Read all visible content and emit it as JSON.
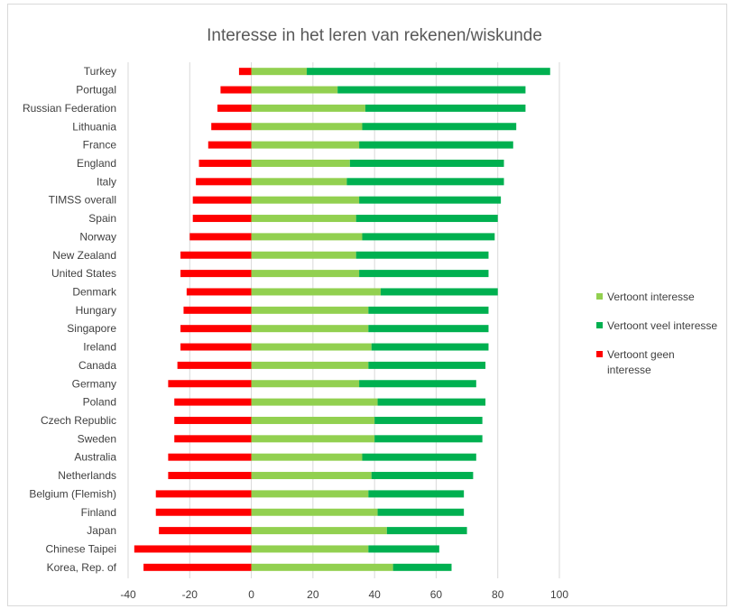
{
  "chart_data": {
    "type": "bar",
    "orientation": "horizontal",
    "stacked": true,
    "title": "Interesse in het leren van rekenen/wiskunde",
    "categories": [
      "Turkey",
      "Portugal",
      "Russian Federation",
      "Lithuania",
      "France",
      "England",
      "Italy",
      "TIMSS overall",
      "Spain",
      "Norway",
      "New Zealand",
      "United States",
      "Denmark",
      "Hungary",
      "Singapore",
      "Ireland",
      "Canada",
      "Germany",
      "Poland",
      "Czech Republic",
      "Sweden",
      "Australia",
      "Netherlands",
      "Belgium (Flemish)",
      "Finland",
      "Japan",
      "Chinese Taipei",
      "Korea, Rep. of"
    ],
    "series": [
      {
        "name": "Vertoont interesse",
        "color": "#92d050",
        "values": [
          18,
          28,
          37,
          36,
          35,
          32,
          31,
          35,
          34,
          36,
          34,
          35,
          42,
          38,
          38,
          39,
          38,
          35,
          41,
          40,
          40,
          36,
          39,
          38,
          41,
          44,
          38,
          46
        ]
      },
      {
        "name": "Vertoont veel interesse",
        "color": "#00b050",
        "values": [
          79,
          61,
          52,
          50,
          50,
          50,
          51,
          46,
          46,
          43,
          43,
          42,
          38,
          39,
          39,
          38,
          38,
          38,
          35,
          35,
          35,
          37,
          33,
          31,
          28,
          26,
          23,
          19
        ]
      },
      {
        "name": "Vertoont geen interesse",
        "color": "#ff0000",
        "values": [
          -4,
          -10,
          -11,
          -13,
          -14,
          -17,
          -18,
          -19,
          -19,
          -20,
          -23,
          -23,
          -21,
          -22,
          -23,
          -23,
          -24,
          -27,
          -25,
          -25,
          -25,
          -27,
          -27,
          -31,
          -31,
          -30,
          -38,
          -35
        ]
      }
    ],
    "xlim": [
      -40,
      100
    ],
    "xticks": [
      -40,
      -20,
      0,
      20,
      40,
      60,
      80,
      100
    ],
    "grid": true,
    "legend": "right"
  }
}
